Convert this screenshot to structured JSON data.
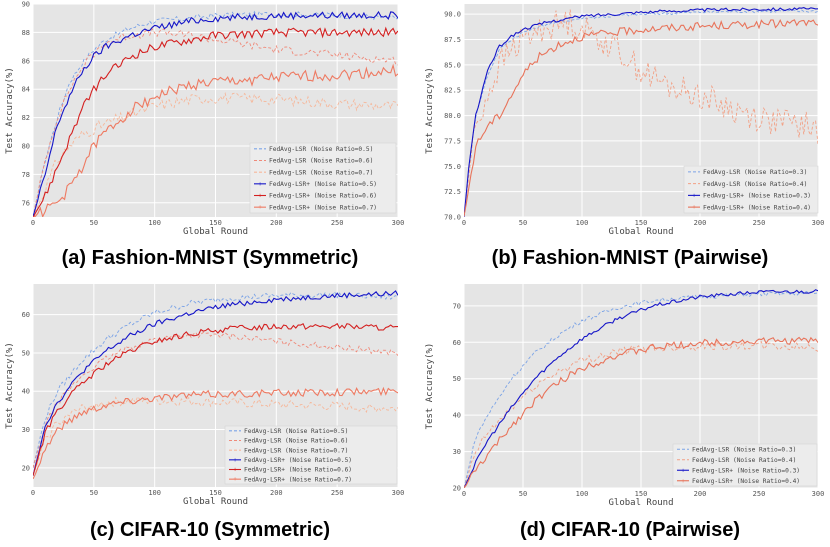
{
  "figure": {
    "captions": [
      "(a) Fashion-MNIST (Symmetric)",
      "(b) Fashion-MNIST (Pairwise)",
      "(c) CIFAR-10 (Symmetric)",
      "(d) CIFAR-10 (Pairwise)"
    ]
  },
  "colors": {
    "background": "#e5e5e5",
    "grid": "#ffffff",
    "lsr_0_3": "#7ba3e6",
    "lsr_0_4": "#f2a085",
    "lsr_0_5": "#7ba3e6",
    "lsr_0_6": "#ef8a7a",
    "lsr_0_7": "#f6b79a",
    "lsrp_0_3": "#1515c8",
    "lsrp_0_4": "#e8735a",
    "lsrp_0_5": "#1515c8",
    "lsrp_0_6": "#d42020",
    "lsrp_0_7": "#ee7a62"
  },
  "chart_data": [
    {
      "type": "line",
      "xlabel": "Global Round",
      "ylabel": "Test Accuracy(%)",
      "xlim": [
        0,
        300
      ],
      "ylim": [
        75,
        90
      ],
      "xticks": [
        0,
        50,
        100,
        150,
        200,
        250,
        300
      ],
      "yticks": [
        76,
        78,
        80,
        82,
        84,
        86,
        88,
        90
      ],
      "legend_position": "bottom-right",
      "series": [
        {
          "name": "FedAvg-LSR (Noise Ratio=0.5)",
          "style": "dashed",
          "color_key": "lsr_0_5",
          "x": [
            0,
            10,
            20,
            30,
            40,
            50,
            60,
            80,
            100,
            130,
            150,
            200,
            250,
            300
          ],
          "y": [
            75,
            79,
            82,
            84.5,
            85.8,
            86.8,
            87.5,
            88.3,
            88.8,
            89.0,
            89.2,
            89.3,
            89.2,
            89.0
          ],
          "noise": 0.2
        },
        {
          "name": "FedAvg-LSR (Noise Ratio=0.6)",
          "style": "dashed",
          "color_key": "lsr_0_6",
          "x": [
            0,
            10,
            20,
            30,
            40,
            50,
            60,
            80,
            100,
            130,
            150,
            200,
            250,
            300
          ],
          "y": [
            75,
            79,
            82,
            84,
            85.5,
            86.5,
            87.3,
            87.8,
            88.0,
            87.8,
            87.5,
            86.8,
            86.4,
            86.0
          ],
          "noise": 0.3
        },
        {
          "name": "FedAvg-LSR (Noise Ratio=0.7)",
          "style": "dashed",
          "color_key": "lsr_0_7",
          "x": [
            0,
            10,
            20,
            30,
            40,
            50,
            60,
            80,
            100,
            130,
            150,
            200,
            250,
            300
          ],
          "y": [
            75,
            77,
            79,
            80,
            80.8,
            81.2,
            81.6,
            82.2,
            82.8,
            83.3,
            83.4,
            83.3,
            83.0,
            82.8
          ],
          "noise": 0.4
        },
        {
          "name": "FedAvg-LSR+ (Noise Ratio=0.5)",
          "style": "solid",
          "color_key": "lsrp_0_5",
          "x": [
            0,
            10,
            20,
            30,
            40,
            50,
            60,
            80,
            100,
            130,
            150,
            200,
            250,
            300
          ],
          "y": [
            75,
            78,
            81.5,
            83.5,
            85.2,
            86.3,
            87.0,
            87.8,
            88.3,
            88.8,
            89.0,
            89.2,
            89.2,
            89.2
          ],
          "noise": 0.25
        },
        {
          "name": "FedAvg-LSR+ (Noise Ratio=0.6)",
          "style": "solid",
          "color_key": "lsrp_0_6",
          "x": [
            0,
            10,
            20,
            30,
            40,
            50,
            60,
            80,
            100,
            130,
            150,
            200,
            250,
            300
          ],
          "y": [
            75,
            76.5,
            78.5,
            80.5,
            82.5,
            84.0,
            85.0,
            86.3,
            87.0,
            87.5,
            87.8,
            88.0,
            88.0,
            88.0
          ],
          "noise": 0.3
        },
        {
          "name": "FedAvg-LSR+ (Noise Ratio=0.7)",
          "style": "solid",
          "color_key": "lsrp_0_7",
          "x": [
            0,
            10,
            20,
            30,
            40,
            50,
            60,
            80,
            100,
            130,
            150,
            200,
            250,
            300
          ],
          "y": [
            75,
            75.5,
            76,
            77,
            78.5,
            80,
            81,
            82.5,
            83.5,
            84.3,
            84.5,
            84.8,
            85.0,
            85.3
          ],
          "noise": 0.4
        }
      ]
    },
    {
      "type": "line",
      "xlabel": "Global Round",
      "ylabel": "Test Accuracy(%)",
      "xlim": [
        0,
        300
      ],
      "ylim": [
        70,
        91
      ],
      "xticks": [
        0,
        50,
        100,
        150,
        200,
        250,
        300
      ],
      "yticks": [
        70.0,
        72.5,
        75.0,
        77.5,
        80.0,
        82.5,
        85.0,
        87.5,
        90.0
      ],
      "legend_position": "bottom-right",
      "series": [
        {
          "name": "FedAvg-LSR (Noise Ratio=0.3)",
          "style": "dashed",
          "color_key": "lsr_0_3",
          "x": [
            0,
            5,
            10,
            20,
            30,
            40,
            50,
            70,
            100,
            150,
            200,
            250,
            300
          ],
          "y": [
            70,
            76,
            80,
            84,
            86.5,
            87.5,
            88.2,
            89.0,
            89.6,
            90.0,
            90.2,
            90.3,
            90.3
          ],
          "noise": 0.15
        },
        {
          "name": "FedAvg-LSR (Noise Ratio=0.4)",
          "style": "dashed",
          "color_key": "lsr_0_4",
          "x": [
            0,
            5,
            10,
            20,
            30,
            40,
            50,
            70,
            90,
            110,
            130,
            150,
            170,
            200,
            230,
            260,
            290,
            300
          ],
          "y": [
            70,
            75,
            79,
            82,
            85,
            86.5,
            87.5,
            88.8,
            89.3,
            88,
            86.5,
            84.5,
            83,
            82,
            80.5,
            79.5,
            79,
            78.5
          ],
          "noise": 1.4
        },
        {
          "name": "FedAvg-LSR+ (Noise Ratio=0.3)",
          "style": "solid",
          "color_key": "lsrp_0_3",
          "x": [
            0,
            5,
            10,
            20,
            30,
            40,
            50,
            70,
            100,
            150,
            200,
            250,
            300
          ],
          "y": [
            70,
            76,
            80,
            84.5,
            86.8,
            87.8,
            88.5,
            89.2,
            89.8,
            90.2,
            90.4,
            90.5,
            90.5
          ],
          "noise": 0.15
        },
        {
          "name": "FedAvg-LSR+ (Noise Ratio=0.4)",
          "style": "solid",
          "color_key": "lsrp_0_4",
          "x": [
            0,
            10,
            20,
            30,
            40,
            50,
            60,
            80,
            100,
            150,
            200,
            250,
            300
          ],
          "y": [
            70,
            77,
            79,
            80,
            82,
            84,
            85.5,
            87,
            87.8,
            88.5,
            88.8,
            89.0,
            89.2
          ],
          "noise": 0.4
        }
      ]
    },
    {
      "type": "line",
      "xlabel": "Global Round",
      "ylabel": "Test Accuracy(%)",
      "xlim": [
        0,
        300
      ],
      "ylim": [
        15,
        68
      ],
      "xticks": [
        0,
        50,
        100,
        150,
        200,
        250,
        300
      ],
      "yticks": [
        20,
        30,
        40,
        50,
        60
      ],
      "legend_position": "bottom-right",
      "series": [
        {
          "name": "FedAvg-LSR (Noise Ratio=0.5)",
          "style": "dashed",
          "color_key": "lsr_0_5",
          "x": [
            0,
            10,
            20,
            40,
            60,
            80,
            100,
            130,
            160,
            200,
            250,
            300
          ],
          "y": [
            20,
            33,
            40,
            48,
            53.5,
            57.5,
            60.5,
            63,
            64.3,
            65.0,
            65.2,
            64.5
          ],
          "noise": 0.8
        },
        {
          "name": "FedAvg-LSR (Noise Ratio=0.6)",
          "style": "dashed",
          "color_key": "lsr_0_6",
          "x": [
            0,
            10,
            20,
            40,
            60,
            80,
            100,
            130,
            160,
            200,
            250,
            300
          ],
          "y": [
            20,
            31,
            37,
            44,
            48.5,
            51.5,
            53.5,
            54.8,
            54.5,
            53.0,
            51.5,
            50.0
          ],
          "noise": 0.8
        },
        {
          "name": "FedAvg-LSR (Noise Ratio=0.7)",
          "style": "dashed",
          "color_key": "lsr_0_7",
          "x": [
            0,
            10,
            20,
            40,
            60,
            80,
            100,
            130,
            160,
            200,
            250,
            300
          ],
          "y": [
            18,
            27,
            32,
            35.5,
            37,
            37.5,
            37.5,
            37.3,
            37.0,
            36.5,
            36.0,
            35.5
          ],
          "noise": 1.2
        },
        {
          "name": "FedAvg-LSR+ (Noise Ratio=0.5)",
          "style": "solid",
          "color_key": "lsrp_0_5",
          "x": [
            0,
            10,
            20,
            40,
            60,
            80,
            100,
            130,
            160,
            200,
            250,
            300
          ],
          "y": [
            18,
            31,
            37,
            45,
            50.5,
            54.5,
            57.5,
            60.5,
            62.5,
            64.0,
            65.0,
            65.5
          ],
          "noise": 0.7
        },
        {
          "name": "FedAvg-LSR+ (Noise Ratio=0.6)",
          "style": "solid",
          "color_key": "lsrp_0_6",
          "x": [
            0,
            10,
            20,
            40,
            60,
            80,
            100,
            130,
            160,
            200,
            250,
            300
          ],
          "y": [
            18,
            29,
            35,
            42,
            47,
            50.5,
            53,
            55,
            56.3,
            57.0,
            57.0,
            56.5
          ],
          "noise": 0.8
        },
        {
          "name": "FedAvg-LSR+ (Noise Ratio=0.7)",
          "style": "solid",
          "color_key": "lsrp_0_7",
          "x": [
            0,
            10,
            20,
            40,
            60,
            80,
            100,
            130,
            160,
            200,
            250,
            300
          ],
          "y": [
            17,
            25,
            30,
            34.5,
            36.5,
            37.5,
            38.3,
            39,
            39.3,
            39.5,
            39.8,
            40.0
          ],
          "noise": 1.0
        }
      ]
    },
    {
      "type": "line",
      "xlabel": "Global Round",
      "ylabel": "Test Accuracy(%)",
      "xlim": [
        0,
        300
      ],
      "ylim": [
        20,
        76
      ],
      "xticks": [
        0,
        50,
        100,
        150,
        200,
        250,
        300
      ],
      "yticks": [
        20,
        30,
        40,
        50,
        60,
        70
      ],
      "legend_position": "bottom-right",
      "series": [
        {
          "name": "FedAvg-LSR (Noise Ratio=0.3)",
          "style": "dashed",
          "color_key": "lsr_0_3",
          "x": [
            0,
            10,
            20,
            40,
            60,
            80,
            100,
            130,
            160,
            200,
            250,
            300
          ],
          "y": [
            20,
            34,
            40,
            50,
            57,
            62,
            66,
            69.5,
            71.5,
            72.5,
            73.2,
            73.5
          ],
          "noise": 0.6
        },
        {
          "name": "FedAvg-LSR (Noise Ratio=0.4)",
          "style": "dashed",
          "color_key": "lsr_0_4",
          "x": [
            0,
            10,
            20,
            40,
            60,
            80,
            100,
            130,
            160,
            200,
            250,
            300
          ],
          "y": [
            20,
            30,
            35,
            42,
            48,
            52,
            55,
            57.5,
            58.5,
            59.0,
            59.0,
            58.5
          ],
          "noise": 1.2
        },
        {
          "name": "FedAvg-LSR+ (Noise Ratio=0.3)",
          "style": "solid",
          "color_key": "lsrp_0_3",
          "x": [
            0,
            10,
            20,
            40,
            60,
            80,
            100,
            130,
            160,
            200,
            250,
            300
          ],
          "y": [
            20,
            27,
            33,
            42,
            50,
            56,
            61,
            66.5,
            70,
            72.5,
            73.8,
            74.0
          ],
          "noise": 0.5
        },
        {
          "name": "FedAvg-LSR+ (Noise Ratio=0.4)",
          "style": "solid",
          "color_key": "lsrp_0_4",
          "x": [
            0,
            10,
            20,
            40,
            60,
            80,
            100,
            130,
            160,
            200,
            250,
            300
          ],
          "y": [
            20,
            25,
            29,
            37,
            44,
            49,
            53,
            56.5,
            58.5,
            59.8,
            60.3,
            60.5
          ],
          "noise": 1.0
        }
      ]
    }
  ]
}
